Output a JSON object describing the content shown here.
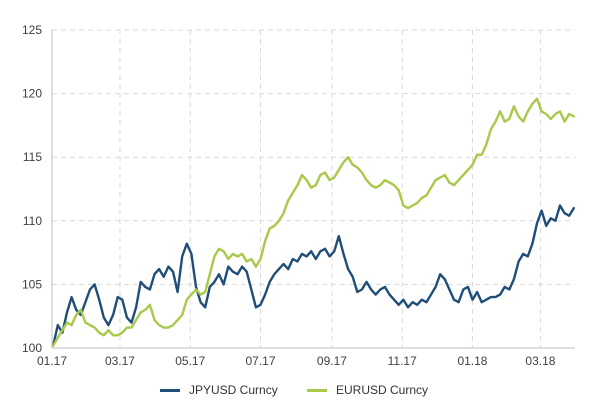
{
  "chart_data": {
    "type": "line",
    "title": "",
    "xlabel": "",
    "ylabel": "",
    "x_tick_labels": [
      "01.17",
      "03.17",
      "05.17",
      "07.17",
      "09.17",
      "11.17",
      "01.18",
      "03.18"
    ],
    "y_tick_labels": [
      "100",
      "105",
      "110",
      "115",
      "120",
      "125"
    ],
    "ylim": [
      100,
      125
    ],
    "xlim": [
      "2017-01-01",
      "2018-03-31"
    ],
    "grid": "dashed",
    "legend_position": "bottom",
    "series": [
      {
        "name": "JPYUSD  Curncy",
        "color": "#1F4E79",
        "x": [
          "2017-01-02",
          "2017-01-06",
          "2017-01-10",
          "2017-01-14",
          "2017-01-18",
          "2017-01-22",
          "2017-01-26",
          "2017-01-30",
          "2017-02-03",
          "2017-02-07",
          "2017-02-11",
          "2017-02-15",
          "2017-02-19",
          "2017-02-23",
          "2017-02-27",
          "2017-03-03",
          "2017-03-07",
          "2017-03-11",
          "2017-03-15",
          "2017-03-19",
          "2017-03-23",
          "2017-03-27",
          "2017-03-31",
          "2017-04-04",
          "2017-04-08",
          "2017-04-12",
          "2017-04-16",
          "2017-04-20",
          "2017-04-24",
          "2017-04-28",
          "2017-05-02",
          "2017-05-06",
          "2017-05-10",
          "2017-05-14",
          "2017-05-18",
          "2017-05-22",
          "2017-05-26",
          "2017-05-30",
          "2017-06-03",
          "2017-06-07",
          "2017-06-11",
          "2017-06-15",
          "2017-06-19",
          "2017-06-23",
          "2017-06-27",
          "2017-07-01",
          "2017-07-05",
          "2017-07-09",
          "2017-07-13",
          "2017-07-17",
          "2017-07-21",
          "2017-07-25",
          "2017-07-29",
          "2017-08-02",
          "2017-08-06",
          "2017-08-10",
          "2017-08-14",
          "2017-08-18",
          "2017-08-22",
          "2017-08-26",
          "2017-08-30",
          "2017-09-03",
          "2017-09-07",
          "2017-09-11",
          "2017-09-15",
          "2017-09-19",
          "2017-09-23",
          "2017-09-27",
          "2017-10-01",
          "2017-10-05",
          "2017-10-09",
          "2017-10-13",
          "2017-10-17",
          "2017-10-21",
          "2017-10-25",
          "2017-10-29",
          "2017-11-02",
          "2017-11-06",
          "2017-11-10",
          "2017-11-14",
          "2017-11-18",
          "2017-11-22",
          "2017-11-26",
          "2017-11-30",
          "2017-12-04",
          "2017-12-08",
          "2017-12-12",
          "2017-12-16",
          "2017-12-20",
          "2017-12-24",
          "2017-12-28",
          "2018-01-01",
          "2018-01-05",
          "2018-01-09",
          "2018-01-13",
          "2018-01-17",
          "2018-01-21",
          "2018-01-25",
          "2018-01-29",
          "2018-02-02",
          "2018-02-06",
          "2018-02-10",
          "2018-02-14",
          "2018-02-18",
          "2018-02-22",
          "2018-02-26",
          "2018-03-02",
          "2018-03-06",
          "2018-03-10",
          "2018-03-14",
          "2018-03-18",
          "2018-03-22",
          "2018-03-26",
          "2018-03-30"
        ],
        "values": [
          100.2,
          101.8,
          101.2,
          102.8,
          104.0,
          103.0,
          102.6,
          103.6,
          104.6,
          105.0,
          103.8,
          102.4,
          101.8,
          102.6,
          104.0,
          103.8,
          102.4,
          102.0,
          103.2,
          105.2,
          104.8,
          104.6,
          105.8,
          106.2,
          105.6,
          106.4,
          106.0,
          104.4,
          107.2,
          108.2,
          107.4,
          104.8,
          103.6,
          103.2,
          104.8,
          105.2,
          105.8,
          105.0,
          106.4,
          106.0,
          105.8,
          106.4,
          106.0,
          104.6,
          103.2,
          103.4,
          104.2,
          105.2,
          105.8,
          106.2,
          106.6,
          106.2,
          107.0,
          106.8,
          107.4,
          107.2,
          107.6,
          107.0,
          107.6,
          107.8,
          107.2,
          107.6,
          108.8,
          107.4,
          106.2,
          105.6,
          104.4,
          104.6,
          105.2,
          104.6,
          104.2,
          104.6,
          104.8,
          104.2,
          103.8,
          103.4,
          103.8,
          103.2,
          103.6,
          103.4,
          103.8,
          103.6,
          104.2,
          104.8,
          105.8,
          105.4,
          104.6,
          103.8,
          103.6,
          104.6,
          104.8,
          103.8,
          104.4,
          103.6,
          103.8,
          104.0,
          104.0,
          104.2,
          104.8,
          104.6,
          105.4,
          106.8,
          107.4,
          107.2,
          108.2,
          109.8,
          110.8,
          109.6,
          110.2,
          110.0,
          111.2,
          110.6,
          110.4,
          111.0
        ]
      },
      {
        "name": "EURUSD Curncy",
        "color": "#A8C94A",
        "x": [
          "2017-01-02",
          "2017-01-06",
          "2017-01-10",
          "2017-01-14",
          "2017-01-18",
          "2017-01-22",
          "2017-01-26",
          "2017-01-30",
          "2017-02-03",
          "2017-02-07",
          "2017-02-11",
          "2017-02-15",
          "2017-02-19",
          "2017-02-23",
          "2017-02-27",
          "2017-03-03",
          "2017-03-07",
          "2017-03-11",
          "2017-03-15",
          "2017-03-19",
          "2017-03-23",
          "2017-03-27",
          "2017-03-31",
          "2017-04-04",
          "2017-04-08",
          "2017-04-12",
          "2017-04-16",
          "2017-04-20",
          "2017-04-24",
          "2017-04-28",
          "2017-05-02",
          "2017-05-06",
          "2017-05-10",
          "2017-05-14",
          "2017-05-18",
          "2017-05-22",
          "2017-05-26",
          "2017-05-30",
          "2017-06-03",
          "2017-06-07",
          "2017-06-11",
          "2017-06-15",
          "2017-06-19",
          "2017-06-23",
          "2017-06-27",
          "2017-07-01",
          "2017-07-05",
          "2017-07-09",
          "2017-07-13",
          "2017-07-17",
          "2017-07-21",
          "2017-07-25",
          "2017-07-29",
          "2017-08-02",
          "2017-08-06",
          "2017-08-10",
          "2017-08-14",
          "2017-08-18",
          "2017-08-22",
          "2017-08-26",
          "2017-08-30",
          "2017-09-03",
          "2017-09-07",
          "2017-09-11",
          "2017-09-15",
          "2017-09-19",
          "2017-09-23",
          "2017-09-27",
          "2017-10-01",
          "2017-10-05",
          "2017-10-09",
          "2017-10-13",
          "2017-10-17",
          "2017-10-21",
          "2017-10-25",
          "2017-10-29",
          "2017-11-02",
          "2017-11-06",
          "2017-11-10",
          "2017-11-14",
          "2017-11-18",
          "2017-11-22",
          "2017-11-26",
          "2017-11-30",
          "2017-12-04",
          "2017-12-08",
          "2017-12-12",
          "2017-12-16",
          "2017-12-20",
          "2017-12-24",
          "2017-12-28",
          "2018-01-01",
          "2018-01-05",
          "2018-01-09",
          "2018-01-13",
          "2018-01-17",
          "2018-01-21",
          "2018-01-25",
          "2018-01-29",
          "2018-02-02",
          "2018-02-06",
          "2018-02-10",
          "2018-02-14",
          "2018-02-18",
          "2018-02-22",
          "2018-02-26",
          "2018-03-02",
          "2018-03-06",
          "2018-03-10",
          "2018-03-14",
          "2018-03-18",
          "2018-03-22",
          "2018-03-26",
          "2018-03-30"
        ],
        "values": [
          100.2,
          100.8,
          101.4,
          102.0,
          101.8,
          102.6,
          103.0,
          102.0,
          101.8,
          101.6,
          101.2,
          101.0,
          101.4,
          101.0,
          101.0,
          101.2,
          101.6,
          101.6,
          102.2,
          102.8,
          103.0,
          103.4,
          102.2,
          101.8,
          101.6,
          101.6,
          101.8,
          102.2,
          102.6,
          103.8,
          104.2,
          104.6,
          104.2,
          104.4,
          105.8,
          107.2,
          107.8,
          107.6,
          107.0,
          107.4,
          107.2,
          107.4,
          106.8,
          107.0,
          106.4,
          107.0,
          108.4,
          109.4,
          109.6,
          110.0,
          110.6,
          111.6,
          112.2,
          112.8,
          113.6,
          113.2,
          112.6,
          112.8,
          113.6,
          113.8,
          113.2,
          113.4,
          114.0,
          114.6,
          115.0,
          114.4,
          114.2,
          113.8,
          113.2,
          112.8,
          112.6,
          112.8,
          113.2,
          113.0,
          112.8,
          112.4,
          111.2,
          111.0,
          111.2,
          111.4,
          111.8,
          112.0,
          112.6,
          113.2,
          113.4,
          113.6,
          113.0,
          112.8,
          113.2,
          113.6,
          114.0,
          114.4,
          115.2,
          115.2,
          116.0,
          117.2,
          117.8,
          118.6,
          117.8,
          118.0,
          119.0,
          118.2,
          117.8,
          118.6,
          119.2,
          119.6,
          118.6,
          118.4,
          118.0,
          118.4,
          118.6,
          117.8,
          118.4,
          118.2
        ]
      }
    ]
  }
}
